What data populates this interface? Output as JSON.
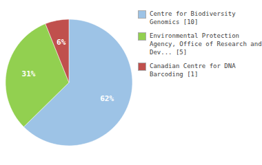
{
  "chart_data": {
    "type": "pie",
    "categories": [
      "Centre for Biodiversity\nGenomics [10]",
      "Environmental Protection\nAgency, Office of Research and\nDev... [5]",
      "Canadian Centre for DNA\nBarcoding [1]"
    ],
    "values": [
      62,
      31,
      6
    ],
    "value_labels": [
      "62%",
      "31%",
      "6%"
    ],
    "colors": [
      "#9dc3e6",
      "#92d050",
      "#c0504d"
    ],
    "data_labels": true,
    "legend": "right"
  }
}
